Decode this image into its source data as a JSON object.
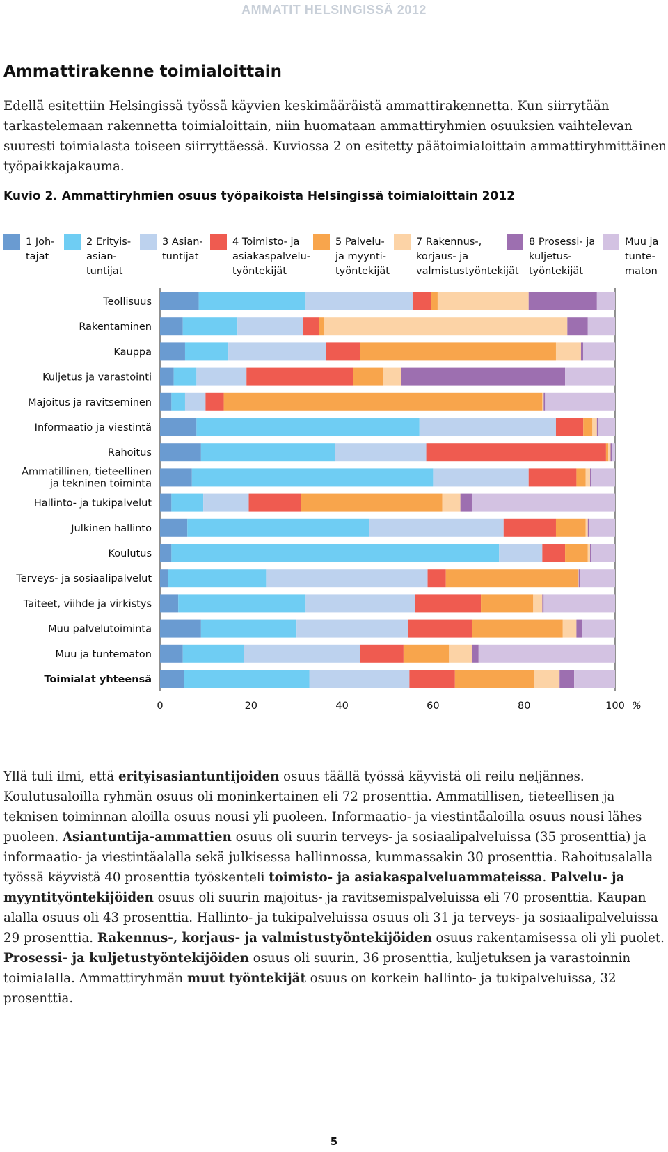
{
  "header": "AMMATIT HELSINGISSÄ 2012",
  "title": "Ammattirakenne toimialoittain",
  "intro_paragraph": "Edellä esitettiin Helsingissä työssä käyvien keskimääräistä ammattirakennetta. Kun siirrytään tarkastelemaan rakennetta toimialoittain, niin huomataan ammattiryhmien osuuksien vaihtelevan suuresti toimialasta toiseen siirryttäessä. Kuviossa 2 on esitetty päätoimialoittain ammattiryhmittäinen työpaikkajakauma.",
  "figure_caption": "Kuvio 2. Ammattiryhmien osuus työpaikoista Helsingissä toimialoittain 2012",
  "legend": [
    {
      "label": "1 Joh-\ntajat",
      "color": "#6a9bd1"
    },
    {
      "label": "2 Erityis-\nasian-\ntuntijat",
      "color": "#6fcdf3"
    },
    {
      "label": "3 Asian-\ntuntijat",
      "color": "#bdd2ee"
    },
    {
      "label": "4 Toimisto- ja\nasiakaspalvelu-\ntyöntekijät",
      "color": "#ef5b50"
    },
    {
      "label": "5 Palvelu-\nja myynti-\ntyöntekijät",
      "color": "#f8a54c"
    },
    {
      "label": "7 Rakennus-,\nkorjaus- ja\nvalmistustyöntekijät",
      "color": "#fcd3a6"
    },
    {
      "label": "8 Prosessi- ja\nkuljetus-\ntyöntekijät",
      "color": "#9d6fb0"
    },
    {
      "label": "Muu ja\ntunte-\nmaton",
      "color": "#d3c2e2"
    }
  ],
  "chart_data": {
    "type": "bar",
    "orientation": "horizontal",
    "stacked": true,
    "title": "Kuvio 2. Ammattiryhmien osuus työpaikoista Helsingissä toimialoittain 2012",
    "xlabel": "%",
    "xlim": [
      0,
      100
    ],
    "xticks": [
      0,
      20,
      40,
      60,
      80,
      100
    ],
    "tick_labels": [
      "0",
      "20",
      "40",
      "60",
      "80",
      "100"
    ],
    "unit_label": "%",
    "categories": [
      "Teollisuus",
      "Rakentaminen",
      "Kauppa",
      "Kuljetus ja varastointi",
      "Majoitus ja ravitseminen",
      "Informaatio ja viestintä",
      "Rahoitus",
      "Ammatillinen, tieteellinen\nja tekninen toiminta",
      "Hallinto- ja tukipalvelut",
      "Julkinen hallinto",
      "Koulutus",
      "Terveys- ja sosiaalipalvelut",
      "Taiteet, viihde ja virkistys",
      "Muu palvelutoiminta",
      "Muu ja tuntematon",
      "Toimialat yhteensä"
    ],
    "bold_category": "Toimialat yhteensä",
    "series": [
      {
        "name": "1 Johtajat",
        "color": "#6a9bd1",
        "values": [
          8.5,
          5,
          5.5,
          3,
          2.5,
          8,
          9,
          7,
          2.5,
          6,
          2.5,
          1.8,
          4,
          9,
          5,
          5.3
        ]
      },
      {
        "name": "2 Erityisasiantuntijat",
        "color": "#6fcdf3",
        "values": [
          23.5,
          12,
          9.5,
          5,
          3,
          49,
          29.5,
          53,
          7,
          40,
          72,
          21.5,
          28,
          21,
          13.5,
          27.5
        ]
      },
      {
        "name": "3 Asiantuntijat",
        "color": "#bdd2ee",
        "values": [
          23.5,
          14.5,
          21.5,
          11,
          4.5,
          30,
          20,
          21,
          10,
          29.5,
          9.5,
          35.5,
          24,
          24.5,
          25.5,
          22
        ]
      },
      {
        "name": "4 Toimisto- ja asiakaspalvelutyöntekijät",
        "color": "#ef5b50",
        "values": [
          4,
          3.5,
          7.5,
          23.5,
          4,
          6,
          39.5,
          10.5,
          11.5,
          11.5,
          5,
          4,
          14.5,
          14,
          9.5,
          10
        ]
      },
      {
        "name": "5 Palvelu- ja myyntityöntekijät",
        "color": "#f8a54c",
        "values": [
          1.5,
          1,
          43,
          6.5,
          70,
          2,
          0.5,
          2,
          31,
          6.5,
          5,
          29,
          11.5,
          20,
          10,
          17.5
        ]
      },
      {
        "name": "7 Rakennus-, korjaus- ja valmistustyöntekijät",
        "color": "#fcd3a6",
        "values": [
          20,
          53.5,
          5.5,
          4,
          0.3,
          1,
          0.5,
          1,
          4,
          0.5,
          0.5,
          0.2,
          2,
          3,
          5,
          5.5
        ]
      },
      {
        "name": "8 Prosessi- ja kuljetustyöntekijät",
        "color": "#9d6fb0",
        "values": [
          15,
          4.5,
          0.5,
          36,
          0.3,
          0.3,
          0.3,
          0.2,
          2.5,
          0.3,
          0.2,
          0.2,
          0.3,
          1.2,
          1.5,
          3.2
        ]
      },
      {
        "name": "Muu ja tuntematon",
        "color": "#d3c2e2",
        "values": [
          4,
          6,
          7,
          11,
          15.4,
          3.7,
          0.7,
          5.3,
          31.5,
          5.7,
          5.3,
          7.8,
          15.7,
          7.3,
          30,
          9
        ]
      }
    ]
  },
  "body_paragraph_segments": [
    {
      "text": "Yllä tuli ilmi, että ",
      "bold": false
    },
    {
      "text": "erityisasiantuntijoiden",
      "bold": true
    },
    {
      "text": " osuus täällä työssä käyvistä oli reilu neljännes. Koulutusaloilla ryhmän osuus oli moninkertainen eli 72 prosenttia. Ammatillisen, tieteellisen ja teknisen toiminnan aloilla osuus nousi yli puoleen. Informaatio- ja viestintäaloilla osuus nousi lähes puoleen. ",
      "bold": false
    },
    {
      "text": "Asiantuntija-ammattien",
      "bold": true
    },
    {
      "text": " osuus oli suurin terveys- ja sosiaalipalveluissa (35 prosenttia) ja informaatio- ja viestintäalalla sekä julkisessa hallinnossa, kummassakin 30 prosenttia. Rahoitusalalla työssä käyvistä 40 prosenttia työskenteli ",
      "bold": false
    },
    {
      "text": "toimisto- ja asiakaspalveluammateissa",
      "bold": true
    },
    {
      "text": ". ",
      "bold": false
    },
    {
      "text": "Palvelu- ja myyntityöntekijöiden",
      "bold": true
    },
    {
      "text": " osuus oli suurin majoitus- ja ravitsemispalveluissa eli 70 prosenttia. Kaupan alalla osuus oli 43 prosenttia. Hallinto- ja tukipalveluissa osuus oli 31 ja terveys- ja sosiaalipalveluissa 29 prosenttia. ",
      "bold": false
    },
    {
      "text": "Rakennus-, korjaus- ja valmistustyöntekijöiden",
      "bold": true
    },
    {
      "text": " osuus rakentamisessa oli yli puolet. ",
      "bold": false
    },
    {
      "text": "Prosessi- ja kuljetustyöntekijöiden",
      "bold": true
    },
    {
      "text": " osuus oli suurin, 36 prosenttia, kuljetuksen ja varastoinnin toimialalla. Ammattiryhmän ",
      "bold": false
    },
    {
      "text": "muut työntekijät",
      "bold": true
    },
    {
      "text": " osuus on korkein hallinto- ja tukipalveluissa, 32 prosenttia.",
      "bold": false
    }
  ],
  "page_number": "5"
}
